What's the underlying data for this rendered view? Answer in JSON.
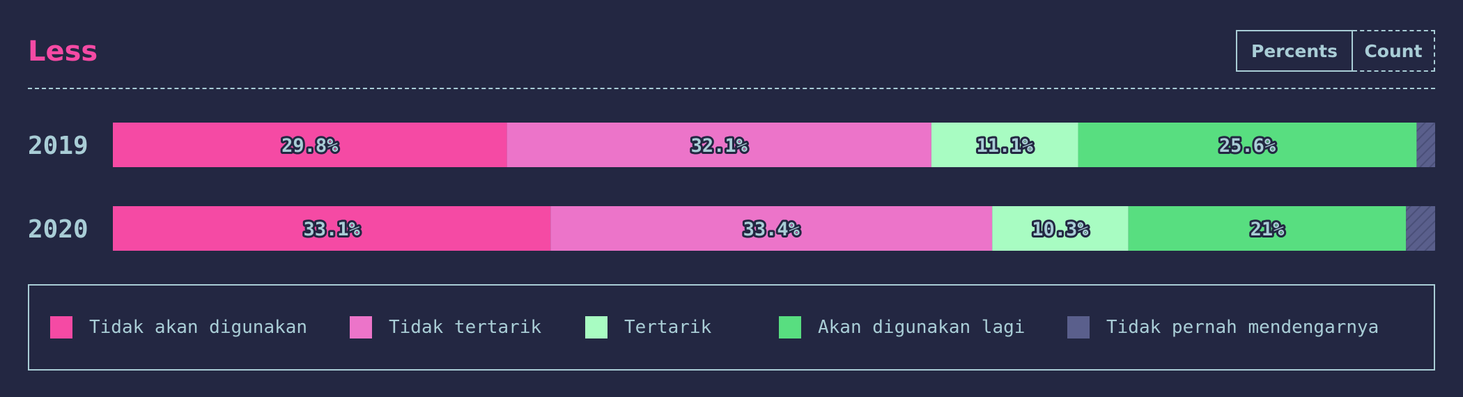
{
  "header": {
    "title": "Less",
    "toggle": {
      "percents_label": "Percents",
      "count_label": "Count",
      "selected": "Percents"
    }
  },
  "colors": {
    "background": "#232742",
    "text": "#a9cdd6",
    "title": "#f54aa4",
    "series": [
      "#f54aa4",
      "#ec74c9",
      "#a8fcc2",
      "#58de80",
      "#5a5f8c"
    ]
  },
  "chart_data": {
    "type": "bar",
    "orientation": "horizontal",
    "stacked": true,
    "normalized": true,
    "title": "Less",
    "categories": [
      "2019",
      "2020"
    ],
    "series": [
      {
        "name": "Tidak akan digunakan",
        "values": [
          29.8,
          33.1
        ]
      },
      {
        "name": "Tidak tertarik",
        "values": [
          32.1,
          33.4
        ]
      },
      {
        "name": "Tertarik",
        "values": [
          11.1,
          10.3
        ]
      },
      {
        "name": "Akan digunakan lagi",
        "values": [
          25.6,
          21
        ]
      },
      {
        "name": "Tidak pernah mendengarnya",
        "values": [
          1.4,
          2.2
        ]
      }
    ],
    "value_labels": [
      [
        "29.8%",
        "32.1%",
        "11.1%",
        "25.6%",
        ""
      ],
      [
        "33.1%",
        "33.4%",
        "10.3%",
        "21%",
        ""
      ]
    ],
    "xlim": [
      0,
      100
    ],
    "legend_position": "bottom"
  }
}
